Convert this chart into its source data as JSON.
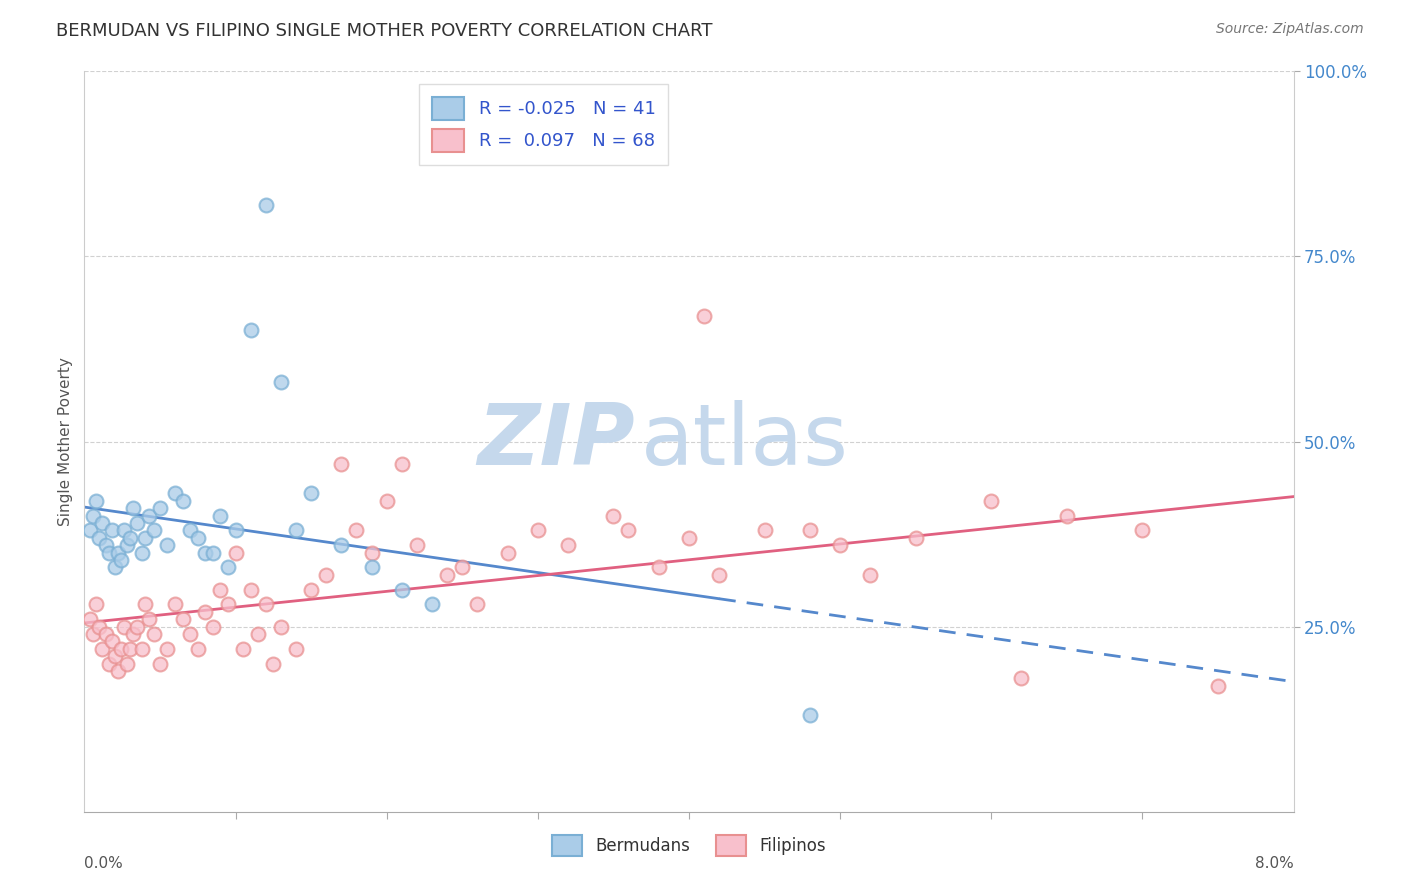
{
  "title": "BERMUDAN VS FILIPINO SINGLE MOTHER POVERTY CORRELATION CHART",
  "source_text": "Source: ZipAtlas.com",
  "ylabel": "Single Mother Poverty",
  "xmin": 0.0,
  "xmax": 8.0,
  "ymin": 0.0,
  "ymax": 100.0,
  "ytick_vals": [
    25,
    50,
    75,
    100
  ],
  "ytick_labels": [
    "25.0%",
    "50.0%",
    "75.0%",
    "100.0%"
  ],
  "legend_R_bermudan": "-0.025",
  "legend_N_bermudan": "41",
  "legend_R_filipino": "0.097",
  "legend_N_filipino": "68",
  "color_bermudan_face": "#aacce8",
  "color_bermudan_edge": "#7aafd4",
  "color_bermudan_line": "#5588cc",
  "color_filipino_face": "#f8c0cc",
  "color_filipino_edge": "#e89090",
  "color_filipino_line": "#e06080",
  "watermark_ZIP_color": "#c5d8ec",
  "watermark_atlas_color": "#c5d8ec",
  "background_color": "#ffffff",
  "grid_color": "#cccccc",
  "legend_text_color": "#3355cc",
  "title_color": "#333333",
  "axis_label_color": "#555555",
  "right_tick_color": "#4488cc",
  "bermudan_x": [
    0.04,
    0.06,
    0.08,
    0.1,
    0.12,
    0.14,
    0.16,
    0.18,
    0.2,
    0.22,
    0.24,
    0.26,
    0.28,
    0.3,
    0.32,
    0.35,
    0.38,
    0.4,
    0.43,
    0.46,
    0.5,
    0.55,
    0.6,
    0.65,
    0.7,
    0.8,
    0.9,
    1.0,
    1.1,
    1.2,
    1.3,
    1.5,
    1.7,
    1.9,
    2.1,
    2.3,
    0.75,
    0.85,
    0.95,
    1.4,
    4.8
  ],
  "bermudan_y": [
    38,
    40,
    42,
    37,
    39,
    36,
    35,
    38,
    33,
    35,
    34,
    38,
    36,
    37,
    41,
    39,
    35,
    37,
    40,
    38,
    41,
    36,
    43,
    42,
    38,
    35,
    40,
    38,
    65,
    82,
    58,
    43,
    36,
    33,
    30,
    28,
    37,
    35,
    33,
    38,
    13
  ],
  "filipino_x": [
    0.04,
    0.06,
    0.08,
    0.1,
    0.12,
    0.14,
    0.16,
    0.18,
    0.2,
    0.22,
    0.24,
    0.26,
    0.28,
    0.3,
    0.32,
    0.35,
    0.38,
    0.4,
    0.43,
    0.46,
    0.5,
    0.55,
    0.6,
    0.65,
    0.7,
    0.75,
    0.8,
    0.85,
    0.9,
    0.95,
    1.0,
    1.1,
    1.2,
    1.3,
    1.4,
    1.5,
    1.6,
    1.7,
    1.8,
    1.9,
    2.0,
    2.1,
    2.2,
    2.4,
    2.6,
    2.8,
    3.0,
    3.2,
    3.5,
    3.8,
    4.0,
    4.2,
    4.5,
    4.8,
    5.0,
    5.2,
    5.5,
    6.0,
    6.2,
    6.5,
    7.0,
    7.5,
    1.05,
    1.15,
    1.25,
    2.5,
    4.1,
    3.6
  ],
  "filipino_y": [
    26,
    24,
    28,
    25,
    22,
    24,
    20,
    23,
    21,
    19,
    22,
    25,
    20,
    22,
    24,
    25,
    22,
    28,
    26,
    24,
    20,
    22,
    28,
    26,
    24,
    22,
    27,
    25,
    30,
    28,
    35,
    30,
    28,
    25,
    22,
    30,
    32,
    47,
    38,
    35,
    42,
    47,
    36,
    32,
    28,
    35,
    38,
    36,
    40,
    33,
    37,
    32,
    38,
    38,
    36,
    32,
    37,
    42,
    18,
    40,
    38,
    17,
    22,
    24,
    20,
    33,
    67,
    38
  ],
  "solid_dash_split_x": 4.2
}
